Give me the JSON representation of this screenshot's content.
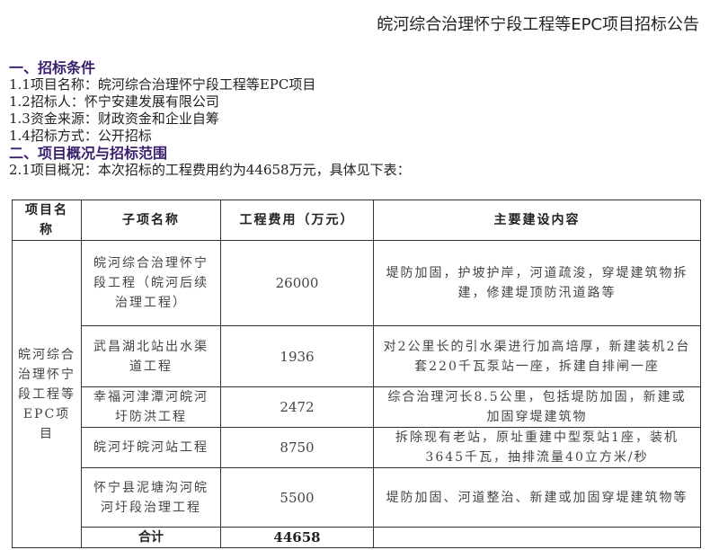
{
  "title": "皖河综合治理怀宁段工程等EPC项目招标公告",
  "sections": [
    {
      "heading": "一、招标条件",
      "lines": [
        "1.1项目名称：皖河综合治理怀宁段工程等EPC项目",
        "1.2招标人：怀宁安建发展有限公司",
        "1.3资金来源：财政资金和企业自筹",
        "1.4招标方式：公开招标"
      ]
    },
    {
      "heading": "二、项目概况与招标范围",
      "lines": [
        "2.1项目概况：本次招标的工程费用约为44658万元，具体见下表："
      ]
    }
  ],
  "table": {
    "headers": [
      "项目名称",
      "子项名称",
      "工程费用（万元）",
      "主要建设内容"
    ],
    "project": "皖河综合治理怀宁段工程等EPC项目",
    "rows": [
      {
        "name": "皖河综合治理怀宁段工程（皖河后续治理工程）",
        "cost": "26000",
        "content": "堤防加固，护坡护岸，河道疏浚，穿堤建筑物拆建，修建堤顶防汛道路等"
      },
      {
        "name": "武昌湖北站出水渠道工程",
        "cost": "1936",
        "content": "对2公里长的引水渠进行加高培厚，新建装机2台套220千瓦泵站一座，拆建自排闸一座"
      },
      {
        "name": "幸福河津潭河皖河圩防洪工程",
        "cost": "2472",
        "content": "综合治理河长8.5公里，包括堤防加固，新建或加固穿堤建筑物"
      },
      {
        "name": "皖河圩皖河站工程",
        "cost": "8750",
        "content": "拆除现有老站，原址重建中型泵站1座，装机3645千瓦，抽排流量40立方米/秒"
      },
      {
        "name": "怀宁县泥塘沟河皖河圩段治理工程",
        "cost": "5500",
        "content": "堤防加固、河道整治、新建或加固穿堤建筑物等"
      }
    ],
    "total_label": "合计",
    "total_cost": "44658"
  }
}
